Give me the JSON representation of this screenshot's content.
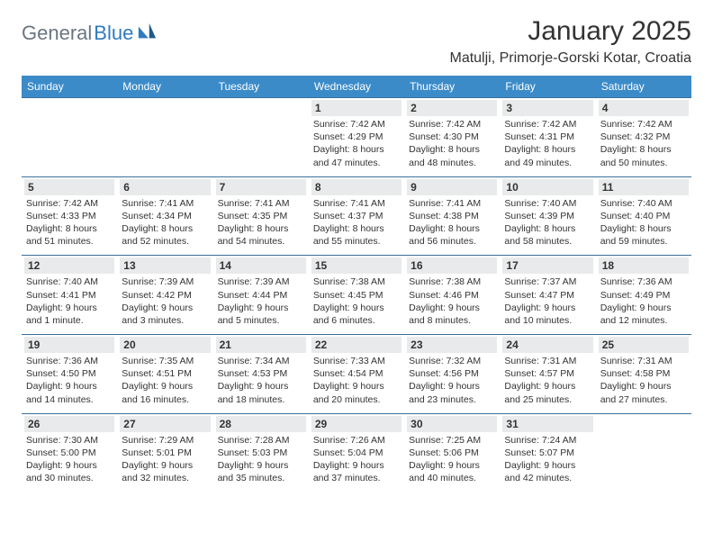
{
  "brand": {
    "part1": "General",
    "part2": "Blue"
  },
  "title": "January 2025",
  "location": "Matulji, Primorje-Gorski Kotar, Croatia",
  "colors": {
    "header_bg": "#3b8bc9",
    "header_text": "#ffffff",
    "daynum_bg": "#e9eaeb",
    "cell_border": "#3b6f9a",
    "brand_gray": "#6b7682",
    "brand_blue": "#2f7bbf",
    "page_bg": "#ffffff",
    "text": "#333333"
  },
  "calendar": {
    "type": "table",
    "day_headers": [
      "Sunday",
      "Monday",
      "Tuesday",
      "Wednesday",
      "Thursday",
      "Friday",
      "Saturday"
    ],
    "weeks": [
      [
        {
          "empty": true
        },
        {
          "empty": true
        },
        {
          "empty": true
        },
        {
          "day": "1",
          "sunrise": "Sunrise: 7:42 AM",
          "sunset": "Sunset: 4:29 PM",
          "daylight1": "Daylight: 8 hours",
          "daylight2": "and 47 minutes."
        },
        {
          "day": "2",
          "sunrise": "Sunrise: 7:42 AM",
          "sunset": "Sunset: 4:30 PM",
          "daylight1": "Daylight: 8 hours",
          "daylight2": "and 48 minutes."
        },
        {
          "day": "3",
          "sunrise": "Sunrise: 7:42 AM",
          "sunset": "Sunset: 4:31 PM",
          "daylight1": "Daylight: 8 hours",
          "daylight2": "and 49 minutes."
        },
        {
          "day": "4",
          "sunrise": "Sunrise: 7:42 AM",
          "sunset": "Sunset: 4:32 PM",
          "daylight1": "Daylight: 8 hours",
          "daylight2": "and 50 minutes."
        }
      ],
      [
        {
          "day": "5",
          "sunrise": "Sunrise: 7:42 AM",
          "sunset": "Sunset: 4:33 PM",
          "daylight1": "Daylight: 8 hours",
          "daylight2": "and 51 minutes."
        },
        {
          "day": "6",
          "sunrise": "Sunrise: 7:41 AM",
          "sunset": "Sunset: 4:34 PM",
          "daylight1": "Daylight: 8 hours",
          "daylight2": "and 52 minutes."
        },
        {
          "day": "7",
          "sunrise": "Sunrise: 7:41 AM",
          "sunset": "Sunset: 4:35 PM",
          "daylight1": "Daylight: 8 hours",
          "daylight2": "and 54 minutes."
        },
        {
          "day": "8",
          "sunrise": "Sunrise: 7:41 AM",
          "sunset": "Sunset: 4:37 PM",
          "daylight1": "Daylight: 8 hours",
          "daylight2": "and 55 minutes."
        },
        {
          "day": "9",
          "sunrise": "Sunrise: 7:41 AM",
          "sunset": "Sunset: 4:38 PM",
          "daylight1": "Daylight: 8 hours",
          "daylight2": "and 56 minutes."
        },
        {
          "day": "10",
          "sunrise": "Sunrise: 7:40 AM",
          "sunset": "Sunset: 4:39 PM",
          "daylight1": "Daylight: 8 hours",
          "daylight2": "and 58 minutes."
        },
        {
          "day": "11",
          "sunrise": "Sunrise: 7:40 AM",
          "sunset": "Sunset: 4:40 PM",
          "daylight1": "Daylight: 8 hours",
          "daylight2": "and 59 minutes."
        }
      ],
      [
        {
          "day": "12",
          "sunrise": "Sunrise: 7:40 AM",
          "sunset": "Sunset: 4:41 PM",
          "daylight1": "Daylight: 9 hours",
          "daylight2": "and 1 minute."
        },
        {
          "day": "13",
          "sunrise": "Sunrise: 7:39 AM",
          "sunset": "Sunset: 4:42 PM",
          "daylight1": "Daylight: 9 hours",
          "daylight2": "and 3 minutes."
        },
        {
          "day": "14",
          "sunrise": "Sunrise: 7:39 AM",
          "sunset": "Sunset: 4:44 PM",
          "daylight1": "Daylight: 9 hours",
          "daylight2": "and 5 minutes."
        },
        {
          "day": "15",
          "sunrise": "Sunrise: 7:38 AM",
          "sunset": "Sunset: 4:45 PM",
          "daylight1": "Daylight: 9 hours",
          "daylight2": "and 6 minutes."
        },
        {
          "day": "16",
          "sunrise": "Sunrise: 7:38 AM",
          "sunset": "Sunset: 4:46 PM",
          "daylight1": "Daylight: 9 hours",
          "daylight2": "and 8 minutes."
        },
        {
          "day": "17",
          "sunrise": "Sunrise: 7:37 AM",
          "sunset": "Sunset: 4:47 PM",
          "daylight1": "Daylight: 9 hours",
          "daylight2": "and 10 minutes."
        },
        {
          "day": "18",
          "sunrise": "Sunrise: 7:36 AM",
          "sunset": "Sunset: 4:49 PM",
          "daylight1": "Daylight: 9 hours",
          "daylight2": "and 12 minutes."
        }
      ],
      [
        {
          "day": "19",
          "sunrise": "Sunrise: 7:36 AM",
          "sunset": "Sunset: 4:50 PM",
          "daylight1": "Daylight: 9 hours",
          "daylight2": "and 14 minutes."
        },
        {
          "day": "20",
          "sunrise": "Sunrise: 7:35 AM",
          "sunset": "Sunset: 4:51 PM",
          "daylight1": "Daylight: 9 hours",
          "daylight2": "and 16 minutes."
        },
        {
          "day": "21",
          "sunrise": "Sunrise: 7:34 AM",
          "sunset": "Sunset: 4:53 PM",
          "daylight1": "Daylight: 9 hours",
          "daylight2": "and 18 minutes."
        },
        {
          "day": "22",
          "sunrise": "Sunrise: 7:33 AM",
          "sunset": "Sunset: 4:54 PM",
          "daylight1": "Daylight: 9 hours",
          "daylight2": "and 20 minutes."
        },
        {
          "day": "23",
          "sunrise": "Sunrise: 7:32 AM",
          "sunset": "Sunset: 4:56 PM",
          "daylight1": "Daylight: 9 hours",
          "daylight2": "and 23 minutes."
        },
        {
          "day": "24",
          "sunrise": "Sunrise: 7:31 AM",
          "sunset": "Sunset: 4:57 PM",
          "daylight1": "Daylight: 9 hours",
          "daylight2": "and 25 minutes."
        },
        {
          "day": "25",
          "sunrise": "Sunrise: 7:31 AM",
          "sunset": "Sunset: 4:58 PM",
          "daylight1": "Daylight: 9 hours",
          "daylight2": "and 27 minutes."
        }
      ],
      [
        {
          "day": "26",
          "sunrise": "Sunrise: 7:30 AM",
          "sunset": "Sunset: 5:00 PM",
          "daylight1": "Daylight: 9 hours",
          "daylight2": "and 30 minutes."
        },
        {
          "day": "27",
          "sunrise": "Sunrise: 7:29 AM",
          "sunset": "Sunset: 5:01 PM",
          "daylight1": "Daylight: 9 hours",
          "daylight2": "and 32 minutes."
        },
        {
          "day": "28",
          "sunrise": "Sunrise: 7:28 AM",
          "sunset": "Sunset: 5:03 PM",
          "daylight1": "Daylight: 9 hours",
          "daylight2": "and 35 minutes."
        },
        {
          "day": "29",
          "sunrise": "Sunrise: 7:26 AM",
          "sunset": "Sunset: 5:04 PM",
          "daylight1": "Daylight: 9 hours",
          "daylight2": "and 37 minutes."
        },
        {
          "day": "30",
          "sunrise": "Sunrise: 7:25 AM",
          "sunset": "Sunset: 5:06 PM",
          "daylight1": "Daylight: 9 hours",
          "daylight2": "and 40 minutes."
        },
        {
          "day": "31",
          "sunrise": "Sunrise: 7:24 AM",
          "sunset": "Sunset: 5:07 PM",
          "daylight1": "Daylight: 9 hours",
          "daylight2": "and 42 minutes."
        },
        {
          "empty": true
        }
      ]
    ]
  }
}
